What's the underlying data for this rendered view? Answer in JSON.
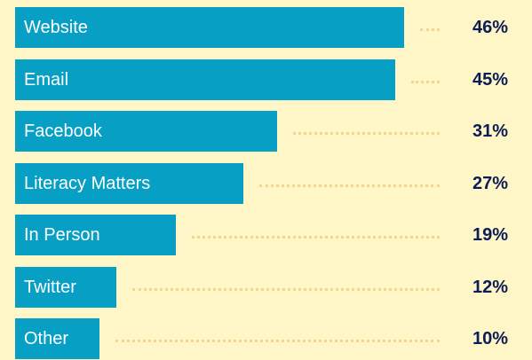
{
  "chart_data": {
    "type": "bar",
    "orientation": "horizontal",
    "categories": [
      "Website",
      "Email",
      "Facebook",
      "Literacy Matters",
      "In Person",
      "Twitter",
      "Other"
    ],
    "values": [
      46,
      45,
      31,
      27,
      19,
      12,
      10
    ],
    "value_labels": [
      "46%",
      "45%",
      "31%",
      "27%",
      "19%",
      "12%",
      "10%"
    ],
    "unit": "%",
    "xlim": [
      0,
      46
    ],
    "grid": false,
    "legend": "none",
    "colors": {
      "background": "#fff6c8",
      "bar": "#079fc4",
      "bar_label": "#ffffff",
      "value_label": "#0b1d56",
      "leader_dots": "#f0d78d"
    }
  }
}
